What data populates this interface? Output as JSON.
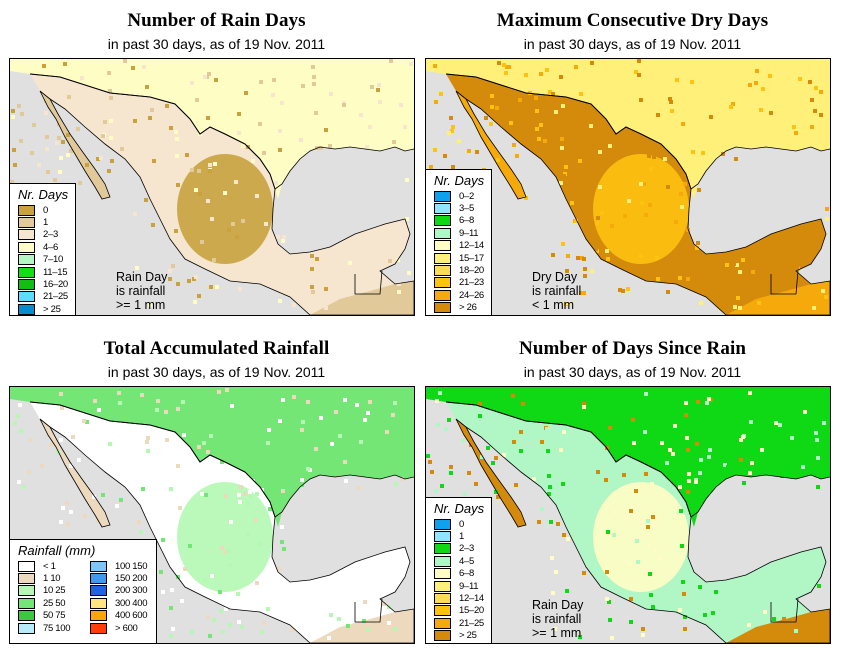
{
  "panels": [
    {
      "id": "rain-days",
      "title": "Number of Rain Days",
      "subtitle": "in past 30 days, as of  19 Nov. 2011",
      "legend_title": "Nr. Days",
      "legend": [
        {
          "label": "0",
          "color": "#c9a23e"
        },
        {
          "label": "1",
          "color": "#e2c99a"
        },
        {
          "label": "2–3",
          "color": "#f6e6cf"
        },
        {
          "label": "4–6",
          "color": "#fdfdc4"
        },
        {
          "label": "7–10",
          "color": "#b3f7c4"
        },
        {
          "label": "11–15",
          "color": "#12de16"
        },
        {
          "label": "16–20",
          "color": "#12be12"
        },
        {
          "label": "21–25",
          "color": "#5cdcff"
        },
        {
          "label": "> 25",
          "color": "#0a8ccc"
        }
      ],
      "note": [
        "Rain Day",
        "is rainfall",
        ">= 1 mm"
      ],
      "dominant": [
        "#f6e6cf",
        "#e2c99a",
        "#c9a23e",
        "#fdfdc4"
      ]
    },
    {
      "id": "max-dry-days",
      "title": "Maximum Consecutive Dry Days",
      "subtitle": "in past 30 days, as of  19 Nov. 2011",
      "legend_title": "Nr. Days",
      "legend": [
        {
          "label": "0–2",
          "color": "#0fa0ee"
        },
        {
          "label": "3–5",
          "color": "#8fe4ff"
        },
        {
          "label": "6–8",
          "color": "#0fd814"
        },
        {
          "label": "9–11",
          "color": "#b1f7c5"
        },
        {
          "label": "12–14",
          "color": "#fffdc4"
        },
        {
          "label": "15–17",
          "color": "#fff07a"
        },
        {
          "label": "18–20",
          "color": "#fedc5a"
        },
        {
          "label": "21–23",
          "color": "#fec210"
        },
        {
          "label": "24–26",
          "color": "#f6a90a"
        },
        {
          "label": "> 26",
          "color": "#d48a0a"
        }
      ],
      "note": [
        "Dry Day",
        "is rainfall",
        "< 1 mm"
      ],
      "dominant": [
        "#d48a0a",
        "#f6a90a",
        "#fec210",
        "#fff07a"
      ]
    },
    {
      "id": "total-rainfall",
      "title": "Total Accumulated Rainfall",
      "subtitle": "in past 30 days, as of  19 Nov. 2011",
      "legend_title": "Rainfall (mm)",
      "legend_left": [
        {
          "label": "< 1",
          "color": "#ffffff"
        },
        {
          "label": "1   10",
          "color": "#ecd9be"
        },
        {
          "label": "10   25",
          "color": "#b4f8b4"
        },
        {
          "label": "25   50",
          "color": "#74e676"
        },
        {
          "label": "50   75",
          "color": "#3ac83e"
        },
        {
          "label": "75  100",
          "color": "#b8ecfa"
        }
      ],
      "legend_right": [
        {
          "label": "100  150",
          "color": "#7cc6fa"
        },
        {
          "label": "150  200",
          "color": "#3e9af0"
        },
        {
          "label": "200  300",
          "color": "#1e64e2"
        },
        {
          "label": "300  400",
          "color": "#ffe680"
        },
        {
          "label": "400  600",
          "color": "#ffa50a"
        },
        {
          "label": "> 600",
          "color": "#ff3c0a"
        }
      ],
      "dominant": [
        "#ffffff",
        "#ecd9be",
        "#b4f8b4",
        "#74e676"
      ]
    },
    {
      "id": "days-since-rain",
      "title": "Number of Days Since Rain",
      "subtitle": "in past 30 days, as of  19 Nov. 2011",
      "legend_title": "Nr. Days",
      "legend": [
        {
          "label": "0",
          "color": "#0fa0ee"
        },
        {
          "label": "1",
          "color": "#8fe4ff"
        },
        {
          "label": "2–3",
          "color": "#0fd814"
        },
        {
          "label": "4–5",
          "color": "#b1f7c5"
        },
        {
          "label": "6–8",
          "color": "#fffdc4"
        },
        {
          "label": "9–11",
          "color": "#fff07a"
        },
        {
          "label": "12–14",
          "color": "#fedc5a"
        },
        {
          "label": "15–20",
          "color": "#fec210"
        },
        {
          "label": "21–25",
          "color": "#f6a90a"
        },
        {
          "label": "> 25",
          "color": "#d48a0a"
        }
      ],
      "note": [
        "Rain Day",
        "is rainfall",
        ">= 1 mm"
      ],
      "dominant": [
        "#b1f7c5",
        "#d48a0a",
        "#fffdc4",
        "#0fd814"
      ]
    }
  ],
  "map_colors": {
    "ocean": "#e0e0e0",
    "border": "#000000"
  }
}
